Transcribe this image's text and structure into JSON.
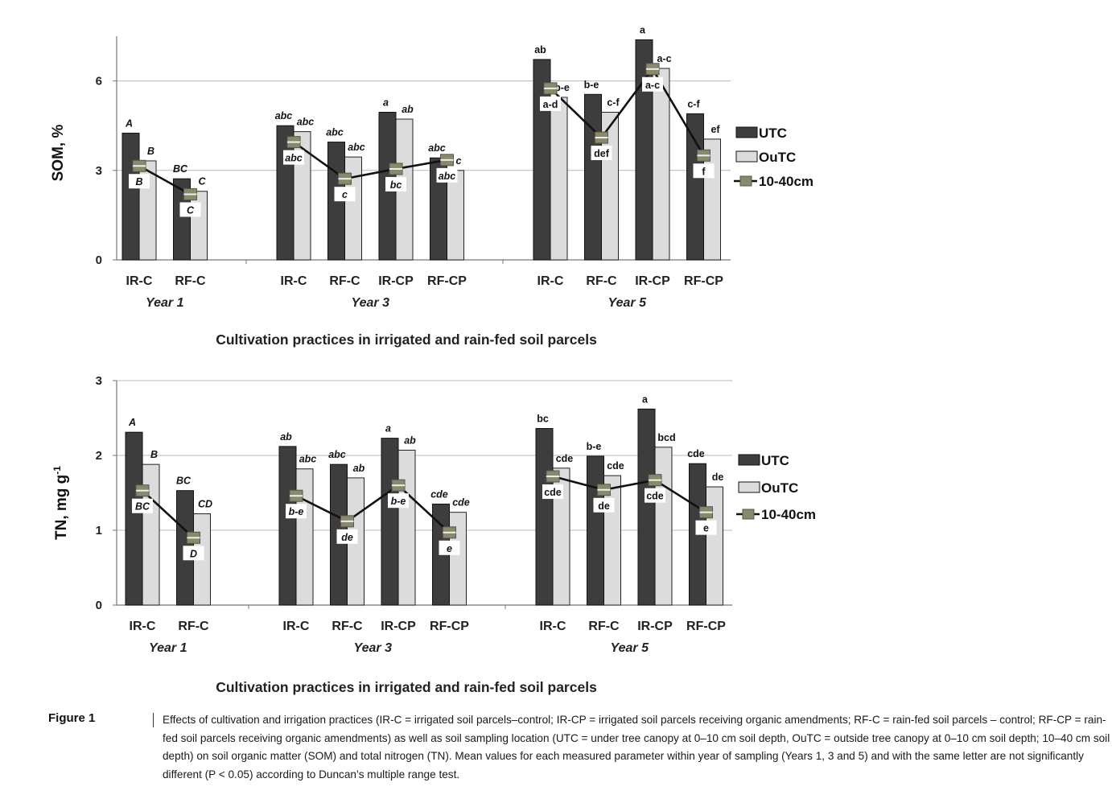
{
  "figure": {
    "label": "Figure 1",
    "caption": "Effects of cultivation and irrigation practices (IR-C = irrigated soil parcels–control; IR-CP = irrigated soil parcels receiving organic amendments; RF-C = rain-fed soil parcels – control; RF-CP = rain-fed soil parcels receiving organic amendments) as well as soil sampling location (UTC = under tree canopy at 0–10 cm soil depth, OuTC = outside tree canopy at 0–10 cm soil depth; 10–40 cm soil depth) on soil organic matter (SOM) and total nitrogen (TN). Mean values for each measured parameter within year of sampling (Years 1, 3 and 5) and with the same letter are not significantly different (P < 0.05) according to Duncan’s multiple range test."
  },
  "colors": {
    "utc": "#3d3d3d",
    "outc": "#dcdcdc",
    "line": "#111111",
    "grid": "#b8b8b8",
    "marker": "#8a8a6a"
  },
  "chart_data": [
    {
      "type": "bar",
      "ylabel": "SOM, %",
      "xlabel": "Cultivation practices in irrigated and rain-fed soil parcels",
      "ylim": [
        0,
        7.5
      ],
      "yticks": [
        0,
        3,
        6
      ],
      "grid": true,
      "legend_position": "right",
      "legend": [
        "UTC",
        "OuTC",
        "10-40cm"
      ],
      "groups": [
        {
          "year": "Year 1",
          "categories": [
            "IR-C",
            "RF-C"
          ],
          "utc": [
            4.25,
            2.72
          ],
          "outc": [
            3.32,
            2.3
          ],
          "depth": [
            3.15,
            2.2
          ],
          "utc_letters": [
            "A",
            "BC"
          ],
          "outc_letters": [
            "B",
            "C"
          ],
          "depth_letters": [
            "B",
            "C"
          ],
          "italic": true
        },
        {
          "year": "Year 3",
          "categories": [
            "IR-C",
            "RF-C",
            "IR-CP",
            "RF-CP"
          ],
          "utc": [
            4.5,
            3.95,
            4.95,
            3.42
          ],
          "outc": [
            4.3,
            3.45,
            4.72,
            3.0
          ],
          "depth": [
            3.95,
            2.72,
            3.05,
            3.35
          ],
          "utc_letters": [
            "abc",
            "abc",
            "a",
            "abc"
          ],
          "outc_letters": [
            "abc",
            "abc",
            "ab",
            "c"
          ],
          "depth_letters": [
            "abc",
            "c",
            "bc",
            "abc"
          ],
          "italic": true
        },
        {
          "year": "Year 5",
          "categories": [
            "IR-C",
            "RF-C",
            "IR-CP",
            "RF-CP"
          ],
          "utc": [
            6.72,
            5.55,
            7.38,
            4.9
          ],
          "outc": [
            5.45,
            4.95,
            6.42,
            4.05
          ],
          "depth": [
            5.75,
            4.1,
            6.4,
            3.5
          ],
          "utc_letters": [
            "ab",
            "b-e",
            "a",
            "c-f"
          ],
          "outc_letters": [
            "b-e",
            "c-f",
            "a-c",
            "ef"
          ],
          "depth_letters": [
            "a-d",
            "def",
            "a-c",
            "f"
          ],
          "italic": false
        }
      ]
    },
    {
      "type": "bar",
      "ylabel": "TN, mg g",
      "ylabel_sup": "-1",
      "xlabel": "Cultivation practices in irrigated and rain-fed soil parcels",
      "ylim": [
        0,
        3
      ],
      "yticks": [
        0,
        1,
        2,
        3
      ],
      "grid": true,
      "legend_position": "right",
      "legend": [
        "UTC",
        "OuTC",
        "10-40cm"
      ],
      "groups": [
        {
          "year": "Year 1",
          "categories": [
            "IR-C",
            "RF-C"
          ],
          "utc": [
            2.31,
            1.53
          ],
          "outc": [
            1.88,
            1.22
          ],
          "depth": [
            1.53,
            0.9
          ],
          "utc_letters": [
            "A",
            "BC"
          ],
          "outc_letters": [
            "B",
            "CD"
          ],
          "depth_letters": [
            "BC",
            "D"
          ],
          "italic": true
        },
        {
          "year": "Year 3",
          "categories": [
            "IR-C",
            "RF-C",
            "IR-CP",
            "RF-CP"
          ],
          "utc": [
            2.12,
            1.88,
            2.23,
            1.35
          ],
          "outc": [
            1.82,
            1.7,
            2.07,
            1.24
          ],
          "depth": [
            1.46,
            1.12,
            1.6,
            0.97
          ],
          "utc_letters": [
            "ab",
            "abc",
            "a",
            "cde"
          ],
          "outc_letters": [
            "abc",
            "ab",
            "ab",
            "cde"
          ],
          "depth_letters": [
            "b-e",
            "de",
            "b-e",
            "e"
          ],
          "italic": true
        },
        {
          "year": "Year 5",
          "categories": [
            "IR-C",
            "RF-C",
            "IR-CP",
            "RF-CP"
          ],
          "utc": [
            2.36,
            1.99,
            2.62,
            1.89
          ],
          "outc": [
            1.83,
            1.73,
            2.11,
            1.58
          ],
          "depth": [
            1.72,
            1.54,
            1.67,
            1.24
          ],
          "utc_letters": [
            "bc",
            "b-e",
            "a",
            "cde"
          ],
          "outc_letters": [
            "cde",
            "cde",
            "bcd",
            "de"
          ],
          "depth_letters": [
            "cde",
            "de",
            "cde",
            "e"
          ],
          "italic": false
        }
      ]
    }
  ]
}
